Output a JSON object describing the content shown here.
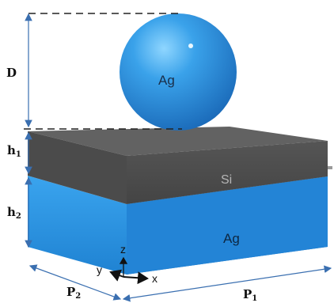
{
  "labels": {
    "sphere": "Ag",
    "middle_layer": "Si",
    "bottom_layer": "Ag",
    "distance": "D",
    "h1_base": "h",
    "h1_sub": "1",
    "h2_base": "h",
    "h2_sub": "2",
    "p1_base": "P",
    "p1_sub": "1",
    "p2_base": "P",
    "p2_sub": "2"
  },
  "axes": {
    "z": "z",
    "y": "y",
    "x": "x"
  },
  "colors": {
    "sphere": "#2f8fdf",
    "sphere_highlight": "#7fd0ff",
    "si_top": "#5f5f5f",
    "si_front": "#4a4a4a",
    "si_side": "#3a3a3a",
    "ag_front": "#2b90de",
    "ag_side": "#1f73bd",
    "dimension_line": "#3a6fb0"
  }
}
